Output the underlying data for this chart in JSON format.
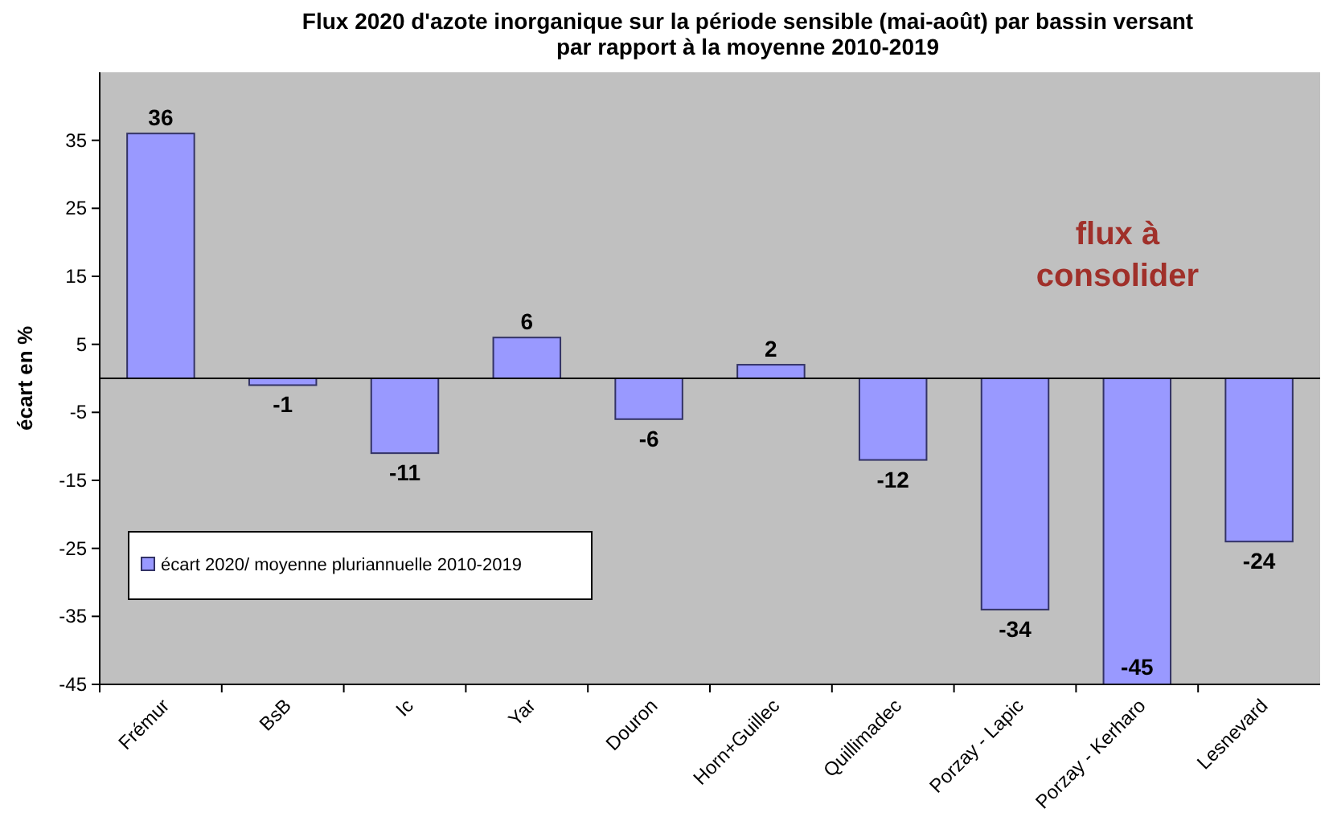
{
  "chart_data": {
    "type": "bar",
    "title": "Flux 2020 d'azote inorganique sur la période sensible (mai-août) par bassin versant\npar rapport à la moyenne 2010-2019",
    "ylabel": "écart en %",
    "categories": [
      "Frémur",
      "BsB",
      "Ic",
      "Yar",
      "Douron",
      "Horn+Guillec",
      "Quillimadec",
      "Porzay - Lapic",
      "Porzay - Kerharo",
      "Lesnevard"
    ],
    "series": [
      {
        "name": "écart 2020/ moyenne pluriannuelle 2010-2019",
        "color": "#9999ff",
        "values": [
          36,
          -1,
          -11,
          6,
          -6,
          2,
          -12,
          -34,
          -45,
          -24
        ]
      }
    ],
    "ylim": [
      -45,
      45
    ],
    "yticks": [
      -45,
      -35,
      -25,
      -15,
      -5,
      5,
      15,
      25,
      35
    ],
    "grid": false,
    "legend": "bottom left",
    "data_labels": true,
    "annotations": [
      "flux à\nconsolider"
    ]
  }
}
